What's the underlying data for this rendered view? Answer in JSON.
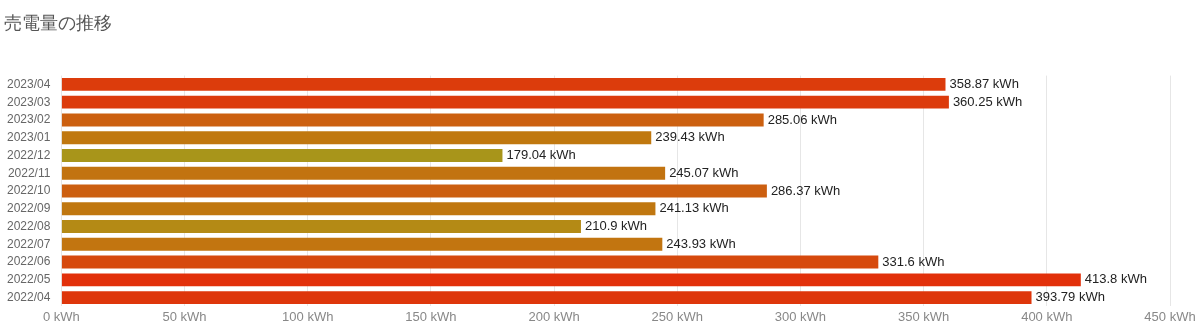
{
  "chart_data": {
    "type": "bar",
    "title": "売電量の推移",
    "orientation": "horizontal",
    "categories": [
      "2023/04",
      "2023/03",
      "2023/02",
      "2023/01",
      "2022/12",
      "2022/11",
      "2022/10",
      "2022/09",
      "2022/08",
      "2022/07",
      "2022/06",
      "2022/05",
      "2022/04"
    ],
    "values": [
      358.87,
      360.25,
      285.06,
      239.43,
      179.04,
      245.07,
      286.37,
      241.13,
      210.9,
      243.93,
      331.6,
      413.8,
      393.79
    ],
    "value_labels": [
      "358.87 kWh",
      "360.25 kWh",
      "285.06 kWh",
      "239.43 kWh",
      "179.04 kWh",
      "245.07 kWh",
      "286.37 kWh",
      "241.13 kWh",
      "210.9 kWh",
      "243.93 kWh",
      "331.6 kWh",
      "413.8 kWh",
      "393.79 kWh"
    ],
    "colors": [
      "#dc3c0c",
      "#dc3b0c",
      "#cc6010",
      "#c0780f",
      "#a8951a",
      "#c27310",
      "#cc5f10",
      "#c07710",
      "#b48a15",
      "#c27510",
      "#d6490d",
      "#e2300a",
      "#de360b"
    ],
    "xlim": [
      0,
      450
    ],
    "xticks": [
      {
        "value": 0,
        "label": "0 kWh"
      },
      {
        "value": 50,
        "label": "50 kWh"
      },
      {
        "value": 100,
        "label": "100 kWh"
      },
      {
        "value": 150,
        "label": "150 kWh"
      },
      {
        "value": 200,
        "label": "200 kWh"
      },
      {
        "value": 250,
        "label": "250 kWh"
      },
      {
        "value": 300,
        "label": "300 kWh"
      },
      {
        "value": 350,
        "label": "350 kWh"
      },
      {
        "value": 400,
        "label": "400 kWh"
      },
      {
        "value": 450,
        "label": "450 kWh"
      }
    ],
    "grid": "x"
  }
}
